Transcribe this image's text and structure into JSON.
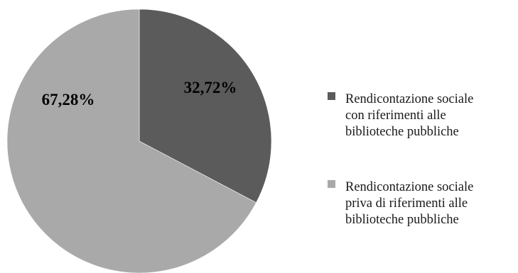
{
  "chart_data": {
    "type": "pie",
    "title": "",
    "start": "top, clockwise",
    "slices": [
      {
        "value": 32.72,
        "label": "32,72%",
        "color": "#5b5b5b",
        "legend_lines": [
          "Rendicontazione sociale",
          "con riferimenti alle",
          "biblioteche pubbliche"
        ]
      },
      {
        "value": 67.28,
        "label": "67,28%",
        "color": "#a9a9a9",
        "legend_lines": [
          "Rendicontazione sociale",
          "priva di riferimenti alle",
          "biblioteche pubbliche"
        ]
      }
    ],
    "legend_position": "right"
  }
}
